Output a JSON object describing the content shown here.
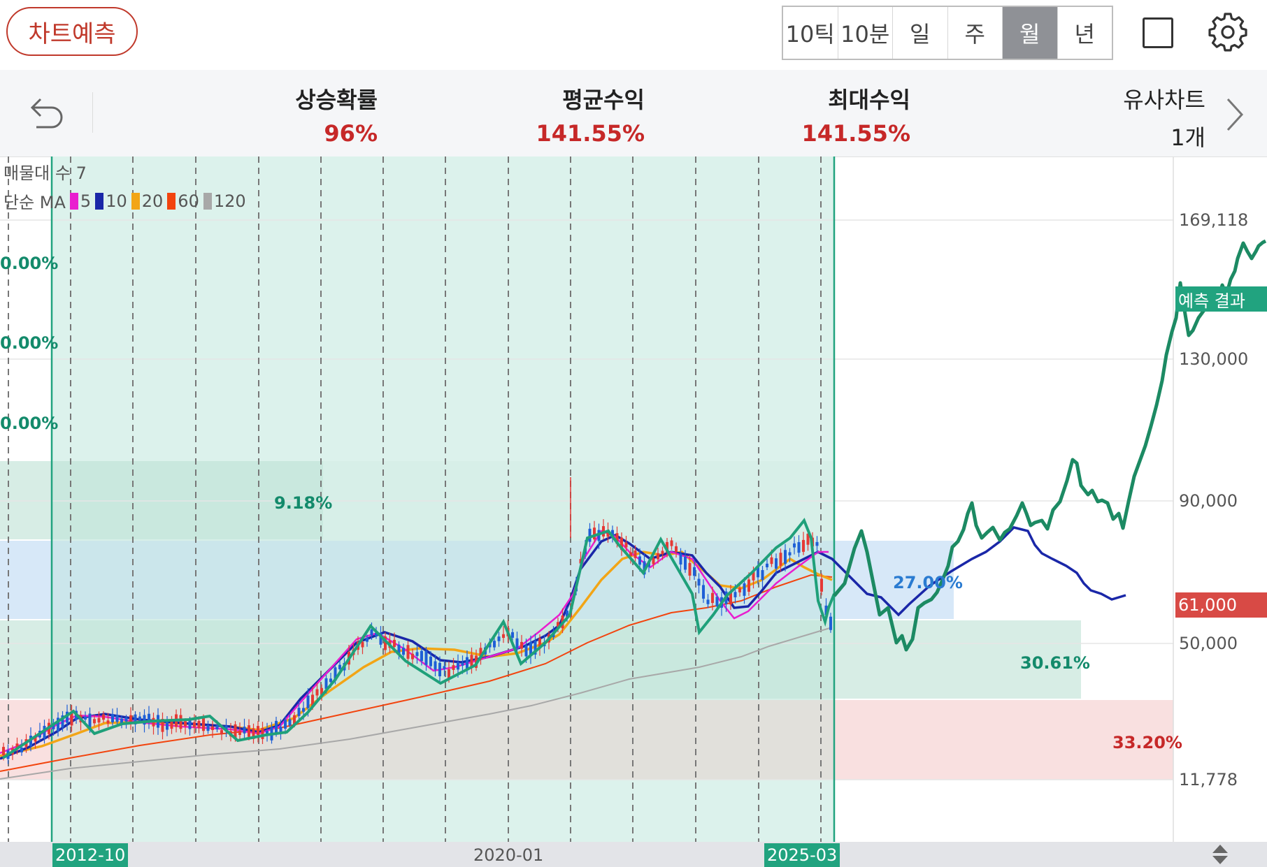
{
  "header": {
    "predict_label": "차트예측",
    "periods": [
      "10틱",
      "10분",
      "일",
      "주",
      "월",
      "년"
    ],
    "active_period": "월"
  },
  "icons": {
    "back": "undo-arrow-icon",
    "square": "square-icon",
    "settings": "gear-icon",
    "next": "chevron-right-icon",
    "scroll": "up-down-arrow-icon"
  },
  "stats": {
    "rise_prob": {
      "label": "상승확률",
      "value": "96%"
    },
    "avg_return": {
      "label": "평균수익",
      "value": "141.55%"
    },
    "max_return": {
      "label": "최대수익",
      "value": "141.55%"
    },
    "similar": {
      "label": "유사차트",
      "value": "1개"
    }
  },
  "legend": {
    "volume_profile": "매물대 수 7",
    "ma_label": "단순 MA",
    "ma_periods": [
      "5",
      "10",
      "20",
      "60",
      "120"
    ],
    "ma_colors": [
      "#e91ecf",
      "#1a27a8",
      "#f2a516",
      "#f2440e",
      "#a8a8a8"
    ]
  },
  "chart": {
    "left_pcts": [
      "0.00%",
      "0.00%",
      "0.00%"
    ],
    "zones": [
      "9.18%",
      "27.00%",
      "30.61%",
      "33.20%"
    ],
    "y_axis": [
      "169,118",
      "130,000",
      "90,000",
      "50,000",
      "11,778"
    ],
    "current_price": "61,000",
    "prediction_label": "예측 결과",
    "x_axis": {
      "start": "2012-10",
      "mid": "2020-01",
      "end": "2025-03"
    },
    "colors": {
      "up": "#e53935",
      "down": "#1e5fd6",
      "pattern": "#1fa07a",
      "prediction": "#1c8a63",
      "price_tag": "#d84a45",
      "predict_tag": "#21a37f"
    }
  }
}
